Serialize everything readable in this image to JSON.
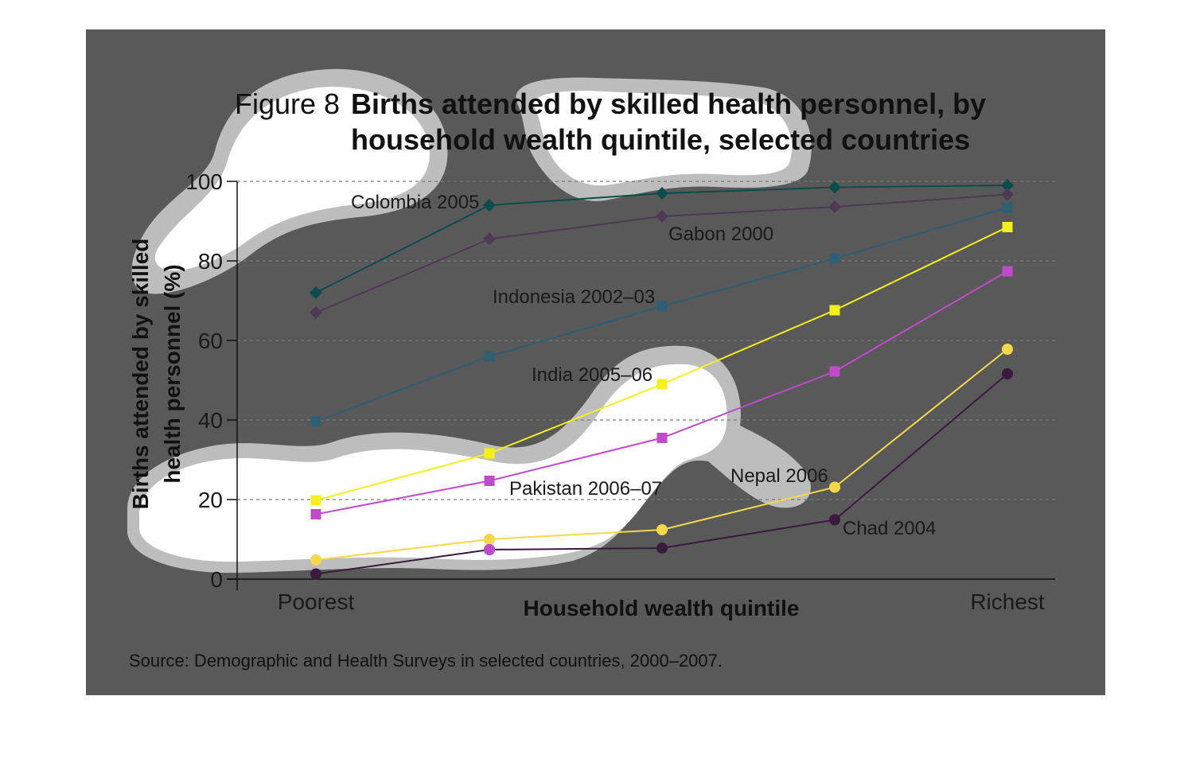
{
  "figure": {
    "number": "Figure 8",
    "title_line1": "Births attended by skilled health personnel, by",
    "title_line2": "household wealth quintile, selected countries",
    "source": "Source: Demographic and Health Surveys in selected countries, 2000–2007."
  },
  "colors": {
    "panel_background": "#595959",
    "blob_fill": "#ffffff",
    "blob_halo": "#bdbdbd",
    "gridline": "#7a7a7a"
  },
  "chart_data": {
    "type": "line",
    "xlabel": "Household wealth quintile",
    "ylabel_line1": "Births attended by skilled",
    "ylabel_line2": "health personnel (%)",
    "categories": [
      "Poorest",
      "",
      "",
      "",
      "Richest"
    ],
    "ylim": [
      0,
      100
    ],
    "yticks": [
      0,
      20,
      40,
      60,
      80,
      100
    ],
    "grid": "horizontal dashed",
    "series": [
      {
        "name": "Colombia 2005",
        "marker": "diamond",
        "color": "#0b4d4d",
        "values": [
          72,
          94,
          97,
          98.5,
          99
        ]
      },
      {
        "name": "Gabon 2000",
        "marker": "diamond",
        "color": "#4f3a55",
        "values": [
          67,
          85.5,
          91.2,
          93.6,
          96.7
        ]
      },
      {
        "name": "Indonesia 2002–03",
        "marker": "square",
        "color": "#2f5f74",
        "values": [
          39.6,
          56,
          68.6,
          80.6,
          93.4
        ]
      },
      {
        "name": "India 2005–06",
        "marker": "square",
        "color": "#f5ef1b",
        "values": [
          19.8,
          31.6,
          49,
          67.6,
          88.5
        ]
      },
      {
        "name": "Pakistan 2006–07",
        "marker": "square",
        "color": "#c04ac9",
        "values": [
          16.3,
          24.7,
          35.5,
          52.2,
          77.4
        ]
      },
      {
        "name": "Nepal 2006",
        "marker": "circle",
        "color": "#f5d84a",
        "values": [
          4.8,
          10,
          12.4,
          23.1,
          57.8
        ]
      },
      {
        "name": "Chad 2004",
        "marker": "circle",
        "color": "#3a1a3f",
        "values": [
          1.3,
          7.4,
          7.8,
          14.9,
          51.6
        ]
      },
      {
        "name": "",
        "marker": "circle",
        "color": "#c04ac9",
        "values": [
          null,
          7.4,
          null,
          null,
          null
        ]
      }
    ]
  }
}
